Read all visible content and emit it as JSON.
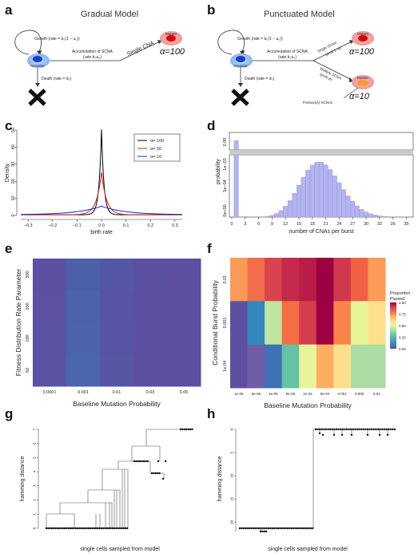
{
  "panels": {
    "a": {
      "label": "a",
      "title": "Gradual Model",
      "growth": "Growth (rate = b₀(1 − u₀))",
      "accum1": "Accumulation of SCNA",
      "accum2": "(rate b₀u₀)",
      "death": "Death (rate = d₀)",
      "ancestor": "Ancestor",
      "mutant": "Mutant",
      "single_cna": "Single CNA",
      "alpha": "α=100"
    },
    "b": {
      "label": "b",
      "title": "Punctuated Model",
      "growth": "Growth (rate = b₀(1 − u₀))",
      "accum1": "Accumulation of SCNA",
      "accum2": "(rate b₀u₀)",
      "death": "Death (rate = d₀)",
      "ancestor": "Ancestor",
      "mutant": "Mutant",
      "single_scna": "Single SCNA",
      "single_prob": "(prob 1−ψ)",
      "multi_scna": "Multiple SCNA",
      "multi_prob": "(prob ψ)",
      "poisson": "Poisson(λ) SCNAs",
      "alpha_top": "α=100",
      "alpha_bottom": "α=10"
    },
    "c": {
      "label": "c"
    },
    "d": {
      "label": "d"
    },
    "e": {
      "label": "e"
    },
    "f": {
      "label": "f"
    },
    "g": {
      "label": "g"
    },
    "h": {
      "label": "h"
    }
  },
  "chart_data": [
    {
      "id": "c",
      "type": "line",
      "xlabel": "birth rate",
      "ylabel": "Density",
      "xlim": [
        -0.33,
        0.33
      ],
      "ylim": [
        0,
        50
      ],
      "xticks": [
        "−0.3",
        "−0.2",
        "−0.1",
        "0.0",
        "0.1",
        "0.2",
        "0.3"
      ],
      "xtick_values": [
        -0.3,
        -0.2,
        -0.1,
        0.0,
        0.1,
        0.2,
        0.3
      ],
      "yticks": [
        "0",
        "10",
        "20",
        "30",
        "40",
        "50"
      ],
      "ytick_values": [
        0,
        10,
        20,
        30,
        40,
        50
      ],
      "legend_position": "top-right",
      "series": [
        {
          "name": "α= 100",
          "color": "#000000",
          "peak": 50,
          "scale": 0.01
        },
        {
          "name": "α= 50",
          "color": "#d62020",
          "peak": 25,
          "scale": 0.02
        },
        {
          "name": "α= 10",
          "color": "#1f1fd6",
          "peak": 5,
          "scale": 0.1
        }
      ]
    },
    {
      "id": "d",
      "type": "bar",
      "xlabel": "number of CNAs per burst",
      "ylabel": "probability",
      "xticks": [
        "0",
        "3",
        "6",
        "9",
        "12",
        "15",
        "18",
        "21",
        "24",
        "27",
        "30",
        "33",
        "36",
        "39"
      ],
      "xtick_values": [
        0,
        3,
        6,
        9,
        12,
        15,
        18,
        21,
        24,
        27,
        30,
        33,
        36,
        39
      ],
      "ytick_top": "0.99",
      "ytick_mid": "5e−04",
      "ytick_bottom": "0e+00",
      "ytick_upper": "1e−03",
      "broken_axis": true,
      "bar_color": "#b3b3f0",
      "first_bar": {
        "x": 1,
        "value": 0.99
      },
      "poisson_lambda": 20,
      "poisson_scale": 0.00088,
      "x_range": [
        0,
        40
      ]
    },
    {
      "id": "e",
      "type": "heatmap",
      "xlabel": "Baseline Mutation Probability",
      "ylabel": "Fitness Distribution Rate Parameter",
      "x_categories": [
        "0.0001",
        "0.001",
        "0.01",
        "0.03",
        "0.05"
      ],
      "y_categories": [
        "500",
        "200",
        "100",
        "50"
      ],
      "colors": [
        [
          "#5e4fa2",
          "#4c5fa9",
          "#5457a6",
          "#5c50a3",
          "#5e4fa2"
        ],
        [
          "#5c51a3",
          "#4b63aa",
          "#5853a4",
          "#5d4fa2",
          "#5e4fa2"
        ],
        [
          "#5b52a4",
          "#4b64ab",
          "#5754a5",
          "#5d50a3",
          "#5e4fa2"
        ],
        [
          "#5a53a4",
          "#4a66ac",
          "#5656a5",
          "#5d50a2",
          "#5e4fa2"
        ]
      ]
    },
    {
      "id": "f",
      "type": "heatmap",
      "xlabel": "Baseline Mutation Probability",
      "ylabel": "Conditional Burst Probability",
      "x_categories": [
        "1e-06",
        "5e-06",
        "1e-05",
        "5e-05",
        "1e-04",
        "5e-04",
        "0.001",
        "0.005",
        "0.01"
      ],
      "y_categories": [
        "0.01",
        "0.001",
        "1e-04"
      ],
      "legend_title_1": "Proportion",
      "legend_title_2": "Passed",
      "legend_ticks": [
        "0.00",
        "0.25",
        "0.50",
        "0.75",
        "1.00"
      ],
      "colors": [
        [
          "#fa9b58",
          "#f26d4b",
          "#d8434e",
          "#c5294b",
          "#b91d47",
          "#9e0142",
          "#cf384d",
          "#f06043",
          "#fa9b58"
        ],
        [
          "#5e4fa2",
          "#3288bd",
          "#bfe5a0",
          "#f46d43",
          "#d53e4f",
          "#9e0142",
          "#f8834c",
          "#e6f598",
          "#fee08b"
        ],
        [
          "#5e4fa2",
          "#6f5da7",
          "#3d73b5",
          "#66c2a5",
          "#e6f598",
          "#fdae61",
          "#fee08b",
          "#abdda4",
          "#abdda4"
        ]
      ]
    },
    {
      "id": "g",
      "type": "tree",
      "xlabel": "single cells sampled from model",
      "ylabel": "hamming distance",
      "yticks": [
        "0",
        "1",
        "2",
        "3",
        "4",
        "5",
        "6",
        "7"
      ],
      "ytick_values": [
        0,
        1,
        2,
        3,
        4,
        5,
        6,
        7
      ]
    },
    {
      "id": "h",
      "type": "tree",
      "xlabel": "single cells sampled from model",
      "ylabel": "hamming distance",
      "yticks": [
        "0",
        "5",
        "10",
        "15",
        "20"
      ],
      "ytick_values": [
        0,
        5,
        10,
        15,
        20
      ]
    }
  ]
}
